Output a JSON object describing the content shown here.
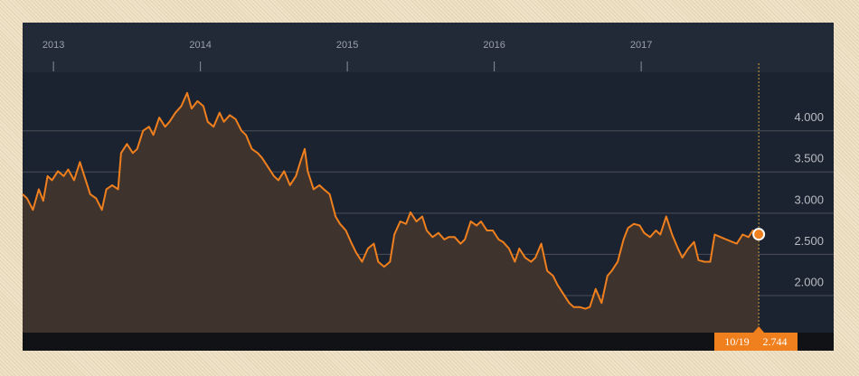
{
  "chart_data": {
    "type": "line",
    "x": [
      2012.79,
      2012.82,
      2012.86,
      2012.9,
      2012.93,
      2012.96,
      2012.99,
      2013.03,
      2013.07,
      2013.1,
      2013.14,
      2013.18,
      2013.2,
      2013.25,
      2013.29,
      2013.33,
      2013.36,
      2013.4,
      2013.44,
      2013.46,
      2013.5,
      2013.54,
      2013.57,
      2013.61,
      2013.65,
      2013.68,
      2013.72,
      2013.76,
      2013.79,
      2013.83,
      2013.87,
      2013.91,
      2013.94,
      2013.98,
      2014.02,
      2014.05,
      2014.09,
      2014.13,
      2014.16,
      2014.2,
      2014.24,
      2014.28,
      2014.31,
      2014.35,
      2014.39,
      2014.42,
      2014.46,
      2014.5,
      2014.53,
      2014.57,
      2014.61,
      2014.65,
      2014.68,
      2014.71,
      2014.73,
      2014.77,
      2014.81,
      2014.84,
      2014.88,
      2014.92,
      2014.95,
      2014.99,
      2015.03,
      2015.06,
      2015.1,
      2015.14,
      2015.18,
      2015.21,
      2015.25,
      2015.29,
      2015.32,
      2015.36,
      2015.4,
      2015.43,
      2015.47,
      2015.51,
      2015.54,
      2015.58,
      2015.62,
      2015.66,
      2015.69,
      2015.73,
      2015.77,
      2015.8,
      2015.84,
      2015.88,
      2015.91,
      2015.95,
      2015.99,
      2016.03,
      2016.06,
      2016.1,
      2016.14,
      2016.17,
      2016.21,
      2016.25,
      2016.28,
      2016.32,
      2016.36,
      2016.4,
      2016.43,
      2016.47,
      2016.51,
      2016.54,
      2016.58,
      2016.62,
      2016.65,
      2016.69,
      2016.73,
      2016.77,
      2016.8,
      2016.84,
      2016.88,
      2016.91,
      2016.95,
      2016.99,
      2017.02,
      2017.06,
      2017.1,
      2017.13,
      2017.17,
      2017.21,
      2017.25,
      2017.28,
      2017.32,
      2017.36,
      2017.39,
      2017.43,
      2017.47,
      2017.5,
      2017.54,
      2017.58,
      2017.62,
      2017.65,
      2017.69,
      2017.73,
      2017.76,
      2017.8
    ],
    "series": [
      {
        "color": "#f07f1e",
        "values": [
          3.23,
          3.18,
          3.04,
          3.29,
          3.15,
          3.45,
          3.4,
          3.51,
          3.45,
          3.53,
          3.4,
          3.62,
          3.51,
          3.23,
          3.18,
          3.04,
          3.29,
          3.34,
          3.29,
          3.73,
          3.84,
          3.73,
          3.78,
          4.0,
          4.05,
          3.95,
          4.16,
          4.05,
          4.11,
          4.22,
          4.3,
          4.46,
          4.27,
          4.36,
          4.3,
          4.11,
          4.05,
          4.22,
          4.11,
          4.19,
          4.14,
          4.0,
          3.95,
          3.78,
          3.73,
          3.67,
          3.56,
          3.45,
          3.4,
          3.51,
          3.34,
          3.45,
          3.62,
          3.78,
          3.51,
          3.29,
          3.34,
          3.29,
          3.23,
          2.96,
          2.87,
          2.79,
          2.63,
          2.52,
          2.41,
          2.57,
          2.63,
          2.41,
          2.35,
          2.41,
          2.74,
          2.9,
          2.87,
          3.01,
          2.9,
          2.96,
          2.79,
          2.71,
          2.76,
          2.68,
          2.71,
          2.71,
          2.63,
          2.68,
          2.9,
          2.85,
          2.9,
          2.79,
          2.79,
          2.68,
          2.65,
          2.57,
          2.41,
          2.57,
          2.46,
          2.41,
          2.46,
          2.63,
          2.3,
          2.24,
          2.13,
          2.02,
          1.91,
          1.86,
          1.86,
          1.84,
          1.86,
          2.08,
          1.91,
          2.24,
          2.3,
          2.41,
          2.68,
          2.82,
          2.87,
          2.85,
          2.76,
          2.71,
          2.79,
          2.74,
          2.96,
          2.74,
          2.57,
          2.46,
          2.57,
          2.65,
          2.43,
          2.41,
          2.41,
          2.74,
          2.71,
          2.68,
          2.65,
          2.63,
          2.74,
          2.71,
          2.79,
          2.744
        ]
      }
    ],
    "xlim": [
      2012.79,
      2018.31
    ],
    "xticks": [
      2013,
      2014,
      2015,
      2016,
      2017
    ],
    "ylim": [
      1.55,
      4.71
    ],
    "yticks": [
      {
        "value": 2,
        "label": "2.000"
      },
      {
        "value": 2.5,
        "label": "2.500"
      },
      {
        "value": 3,
        "label": "3.000"
      },
      {
        "value": 3.5,
        "label": "3.500"
      },
      {
        "value": 4,
        "label": "4.000"
      }
    ],
    "grid": true,
    "end_tag": {
      "date": "10/19",
      "value": "2.744"
    }
  }
}
